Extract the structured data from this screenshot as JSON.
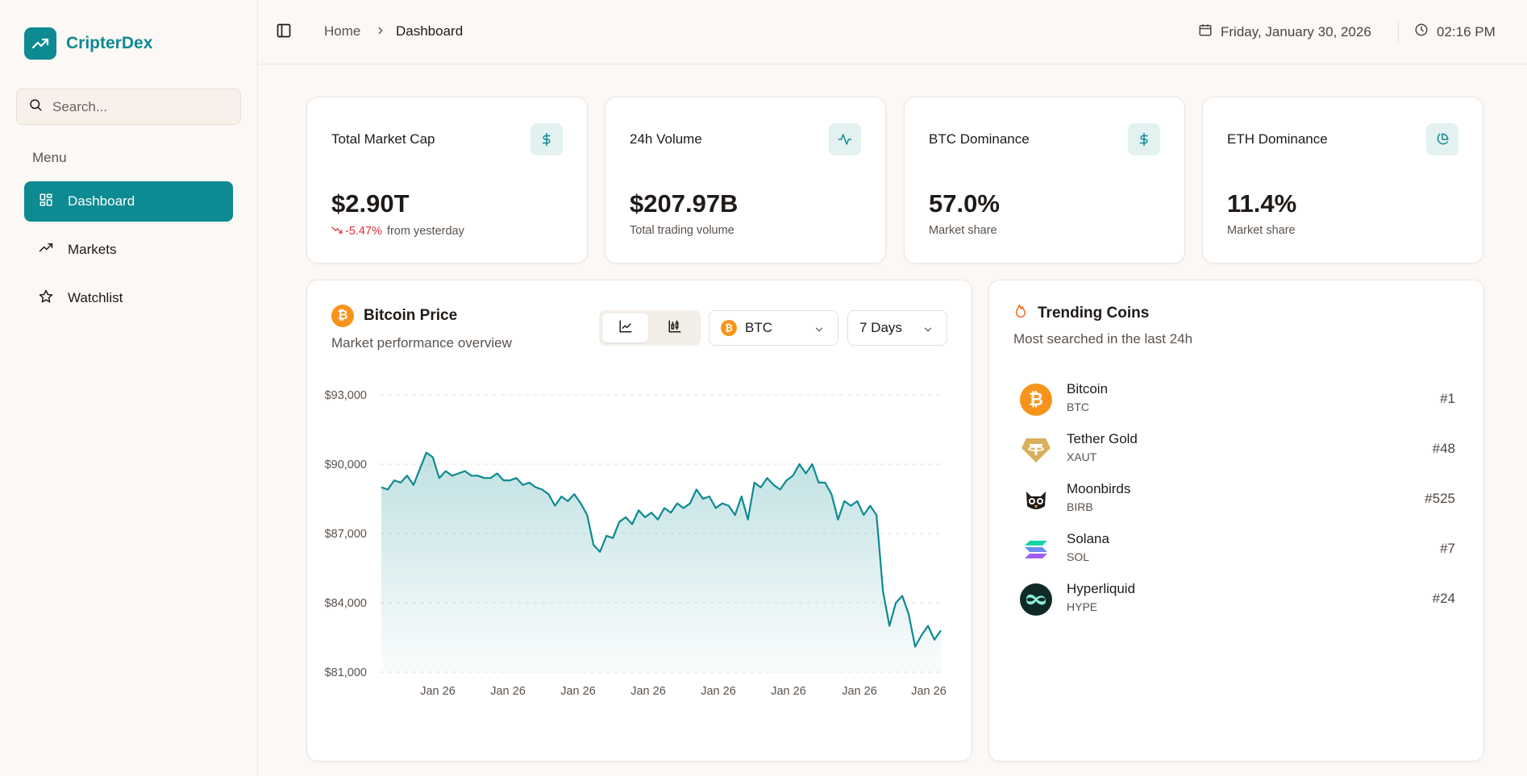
{
  "app": {
    "name": "CripterDex"
  },
  "sidebar": {
    "search_placeholder": "Search...",
    "menu_label": "Menu",
    "items": [
      {
        "label": "Dashboard",
        "icon": "dashboard-icon",
        "active": true
      },
      {
        "label": "Markets",
        "icon": "trending-up-icon",
        "active": false
      },
      {
        "label": "Watchlist",
        "icon": "star-icon",
        "active": false
      }
    ]
  },
  "header": {
    "breadcrumb": {
      "home": "Home",
      "current": "Dashboard"
    },
    "date": "Friday, January 30, 2026",
    "time": "02:16 PM"
  },
  "stats": [
    {
      "title": "Total Market Cap",
      "value": "$2.90T",
      "change": "-5.47%",
      "sub": "from yesterday",
      "icon": "dollar-icon"
    },
    {
      "title": "24h Volume",
      "value": "$207.97B",
      "sub": "Total trading volume",
      "icon": "activity-icon"
    },
    {
      "title": "BTC Dominance",
      "value": "57.0%",
      "sub": "Market share",
      "icon": "dollar-icon"
    },
    {
      "title": "ETH Dominance",
      "value": "11.4%",
      "sub": "Market share",
      "icon": "pie-chart-icon"
    }
  ],
  "price_chart": {
    "title": "Bitcoin Price",
    "subtitle": "Market performance overview",
    "coin_select": "BTC",
    "range_select": "7 Days",
    "chart_types": [
      "line",
      "candlestick"
    ],
    "active_chart_type": "line"
  },
  "chart_data": {
    "type": "area",
    "title": "Bitcoin Price",
    "x_ticks": [
      "Jan 26",
      "Jan 26",
      "Jan 26",
      "Jan 26",
      "Jan 26",
      "Jan 26",
      "Jan 26",
      "Jan 26"
    ],
    "y_ticks": [
      "$93,000",
      "$90,000",
      "$87,000",
      "$84,000",
      "$81,000"
    ],
    "ylim": [
      81000,
      93000
    ],
    "grid": true,
    "color": "#0d8a92",
    "values": [
      89000,
      88900,
      89300,
      89200,
      89500,
      89100,
      89800,
      90500,
      90300,
      89400,
      89700,
      89500,
      89600,
      89700,
      89500,
      89500,
      89400,
      89400,
      89600,
      89300,
      89300,
      89400,
      89100,
      89200,
      89000,
      88900,
      88700,
      88200,
      88600,
      88400,
      88700,
      88300,
      87800,
      86500,
      86200,
      86900,
      86800,
      87500,
      87700,
      87400,
      88000,
      87700,
      87900,
      87600,
      88100,
      87900,
      88300,
      88100,
      88300,
      88900,
      88500,
      88600,
      88100,
      88300,
      88200,
      87800,
      88600,
      87600,
      89200,
      89000,
      89400,
      89100,
      88900,
      89300,
      89500,
      90000,
      89600,
      90000,
      89200,
      89200,
      88700,
      87600,
      88400,
      88200,
      88400,
      87800,
      88200,
      87800,
      84500,
      83000,
      84000,
      84300,
      83500,
      82100,
      82600,
      83000,
      82400,
      82800
    ]
  },
  "trending": {
    "title": "Trending Coins",
    "subtitle": "Most searched in the last 24h",
    "coins": [
      {
        "name": "Bitcoin",
        "symbol": "BTC",
        "rank": "#1",
        "icon": "bitcoin-icon"
      },
      {
        "name": "Tether Gold",
        "symbol": "XAUT",
        "rank": "#48",
        "icon": "tether-gold-icon"
      },
      {
        "name": "Moonbirds",
        "symbol": "BIRB",
        "rank": "#525",
        "icon": "moonbirds-icon"
      },
      {
        "name": "Solana",
        "symbol": "SOL",
        "rank": "#7",
        "icon": "solana-icon"
      },
      {
        "name": "Hyperliquid",
        "symbol": "HYPE",
        "rank": "#24",
        "icon": "hyperliquid-icon"
      }
    ]
  }
}
